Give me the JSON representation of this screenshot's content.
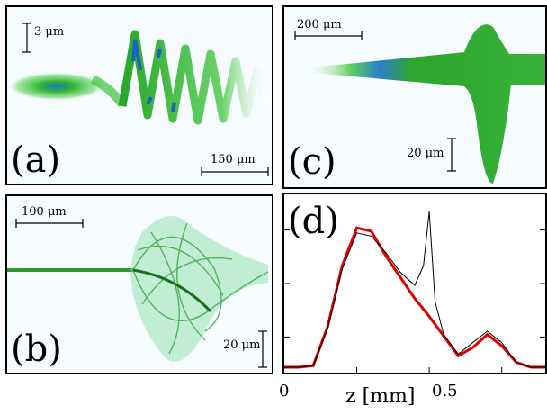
{
  "panels": {
    "a": {
      "label": "(a)",
      "scale_vertical": "3 μm",
      "scale_horizontal": "150 μm"
    },
    "b": {
      "label": "(b)",
      "scale_horizontal": "100 μm",
      "scale_vertical": "20 μm"
    },
    "c": {
      "label": "(c)",
      "scale_horizontal": "200 μm",
      "scale_vertical": "20 μm"
    },
    "d": {
      "label": "(d)"
    }
  },
  "chart_data": {
    "type": "line",
    "xlabel": "z [mm]",
    "x_ticks": [
      "0",
      "0.5"
    ],
    "xlim": [
      0,
      0.9
    ],
    "series": [
      {
        "color": "#e00000",
        "x": [
          0.0,
          0.05,
          0.1,
          0.15,
          0.2,
          0.25,
          0.3,
          0.35,
          0.4,
          0.45,
          0.5,
          0.55,
          0.6,
          0.65,
          0.7,
          0.75,
          0.8,
          0.85,
          0.9
        ],
        "y": [
          0.0,
          0.0,
          0.01,
          0.25,
          0.62,
          0.85,
          0.83,
          0.68,
          0.55,
          0.42,
          0.31,
          0.19,
          0.07,
          0.12,
          0.2,
          0.13,
          0.03,
          0.0,
          0.0
        ]
      },
      {
        "color": "#000000",
        "x": [
          0.0,
          0.05,
          0.1,
          0.15,
          0.2,
          0.25,
          0.3,
          0.35,
          0.4,
          0.45,
          0.48,
          0.5,
          0.52,
          0.55,
          0.6,
          0.65,
          0.7,
          0.75,
          0.8,
          0.85,
          0.9
        ],
        "y": [
          0.0,
          0.0,
          0.01,
          0.24,
          0.6,
          0.82,
          0.8,
          0.7,
          0.58,
          0.5,
          0.62,
          0.95,
          0.4,
          0.2,
          0.08,
          0.15,
          0.22,
          0.15,
          0.03,
          0.0,
          0.0
        ]
      }
    ]
  }
}
